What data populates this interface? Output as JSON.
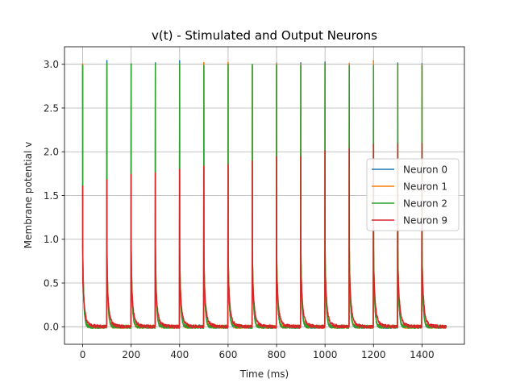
{
  "chart_data": {
    "type": "line",
    "title": "v(t) - Stimulated and Output Neurons",
    "xlabel": "Time (ms)",
    "ylabel": "Membrane potential v",
    "xlim": [
      -75,
      1575
    ],
    "ylim": [
      -0.2,
      3.2
    ],
    "xticks": [
      0,
      200,
      400,
      600,
      800,
      1000,
      1200,
      1400
    ],
    "xtick_labels": [
      "0",
      "200",
      "400",
      "600",
      "800",
      "1000",
      "1200",
      "1400"
    ],
    "yticks": [
      0.0,
      0.5,
      1.0,
      1.5,
      2.0,
      2.5,
      3.0
    ],
    "ytick_labels": [
      "0.0",
      "0.5",
      "1.0",
      "1.5",
      "2.0",
      "2.5",
      "3.0"
    ],
    "grid": true,
    "legend_position": "center-right",
    "stimulus_times_ms": [
      0,
      100,
      200,
      300,
      400,
      500,
      600,
      700,
      800,
      900,
      1000,
      1100,
      1200,
      1300,
      1400
    ],
    "series": [
      {
        "name": "Neuron 0",
        "color": "#1f77b4",
        "peaks": [
          3.0,
          3.04,
          3.0,
          3.0,
          3.03,
          3.01,
          3.0,
          3.0,
          3.0,
          3.0,
          3.03,
          3.0,
          3.0,
          3.0,
          3.0
        ]
      },
      {
        "name": "Neuron 1",
        "color": "#ff7f0e",
        "peaks": [
          3.0,
          3.01,
          3.02,
          3.0,
          3.0,
          3.03,
          3.01,
          3.0,
          3.0,
          3.0,
          3.0,
          3.02,
          3.03,
          3.0,
          3.0
        ]
      },
      {
        "name": "Neuron 2",
        "color": "#2ca02c",
        "peaks": [
          3.0,
          3.0,
          3.0,
          3.0,
          3.0,
          3.0,
          3.0,
          3.0,
          3.0,
          3.0,
          3.0,
          3.0,
          3.0,
          3.0,
          3.0
        ]
      },
      {
        "name": "Neuron 9",
        "color": "#d62728",
        "peaks": [
          1.61,
          1.69,
          1.73,
          1.76,
          1.79,
          1.85,
          1.86,
          1.91,
          1.95,
          1.96,
          2.02,
          2.03,
          2.07,
          2.09,
          2.11
        ]
      }
    ]
  }
}
